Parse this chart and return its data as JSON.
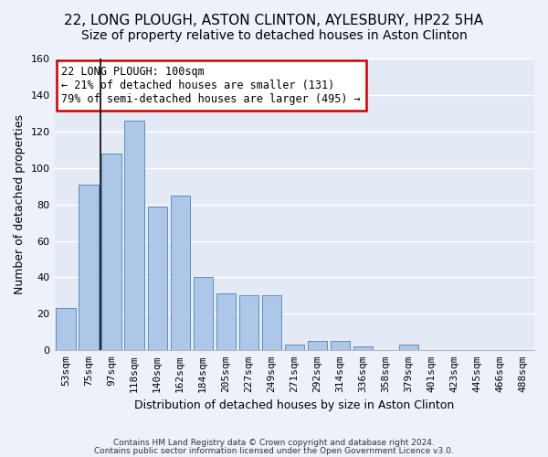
{
  "title1": "22, LONG PLOUGH, ASTON CLINTON, AYLESBURY, HP22 5HA",
  "title2": "Size of property relative to detached houses in Aston Clinton",
  "xlabel": "Distribution of detached houses by size in Aston Clinton",
  "ylabel": "Number of detached properties",
  "footer1": "Contains HM Land Registry data © Crown copyright and database right 2024.",
  "footer2": "Contains public sector information licensed under the Open Government Licence v3.0.",
  "categories": [
    "53sqm",
    "75sqm",
    "97sqm",
    "118sqm",
    "140sqm",
    "162sqm",
    "184sqm",
    "205sqm",
    "227sqm",
    "249sqm",
    "271sqm",
    "292sqm",
    "314sqm",
    "336sqm",
    "358sqm",
    "379sqm",
    "401sqm",
    "423sqm",
    "445sqm",
    "466sqm",
    "488sqm"
  ],
  "values": [
    23,
    91,
    108,
    126,
    79,
    85,
    40,
    31,
    30,
    30,
    3,
    5,
    5,
    2,
    0,
    3,
    0,
    0,
    0,
    0,
    0
  ],
  "bar_color": "#aec6e8",
  "bar_edge_color": "#5a8fc0",
  "fig_background_color": "#edf1f9",
  "ax_background_color": "#e4eaf5",
  "grid_color": "#ffffff",
  "annotation_text": "22 LONG PLOUGH: 100sqm\n← 21% of detached houses are smaller (131)\n79% of semi-detached houses are larger (495) →",
  "annotation_box_color": "#ffffff",
  "annotation_box_edge_color": "#cc0000",
  "vline_x": 1.52,
  "vline_color": "#000000",
  "ylim": [
    0,
    160
  ],
  "yticks": [
    0,
    20,
    40,
    60,
    80,
    100,
    120,
    140,
    160
  ],
  "title1_fontsize": 11,
  "title2_fontsize": 10,
  "ylabel_fontsize": 9,
  "xlabel_fontsize": 9,
  "tick_fontsize": 8,
  "annotation_fontsize": 8.5
}
